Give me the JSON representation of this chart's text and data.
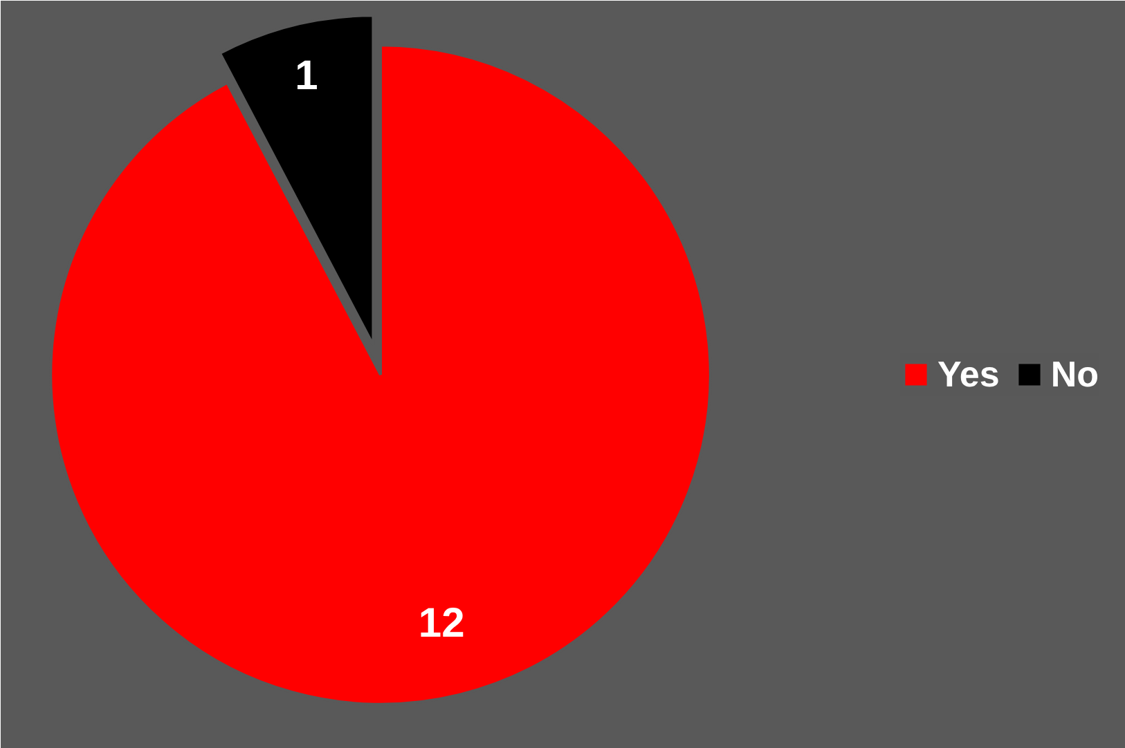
{
  "chart_data": {
    "type": "pie",
    "categories": [
      "Yes",
      "No"
    ],
    "values": [
      12,
      1
    ],
    "colors": [
      "#ff0000",
      "#000000"
    ],
    "data_labels": true,
    "legend": "right"
  }
}
